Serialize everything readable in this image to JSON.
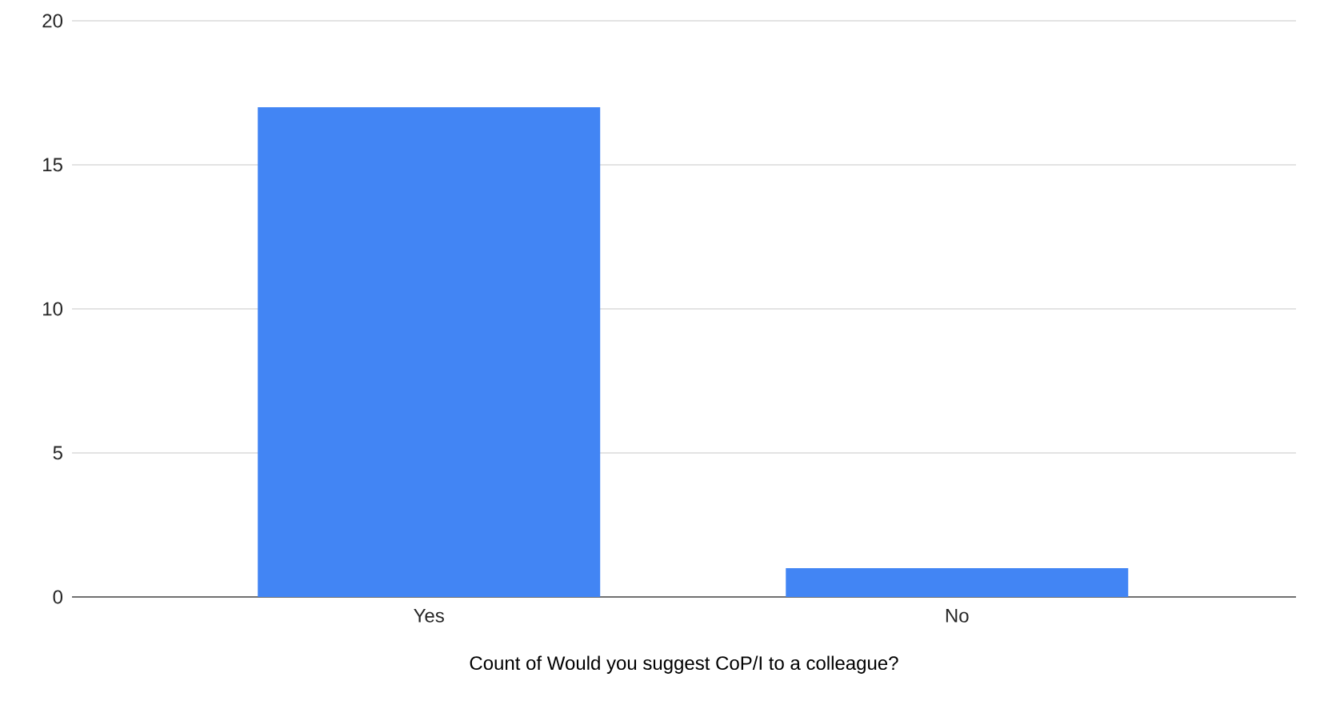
{
  "chart_data": {
    "type": "bar",
    "xlabel": "Count of Would you suggest CoP/I to a colleague?",
    "categories": [
      "Yes",
      "No"
    ],
    "values": [
      17,
      1
    ],
    "color": "#4285f4",
    "ylim": [
      0,
      20
    ],
    "yticks": [
      0,
      5,
      10,
      15,
      20
    ],
    "grid": "y"
  }
}
